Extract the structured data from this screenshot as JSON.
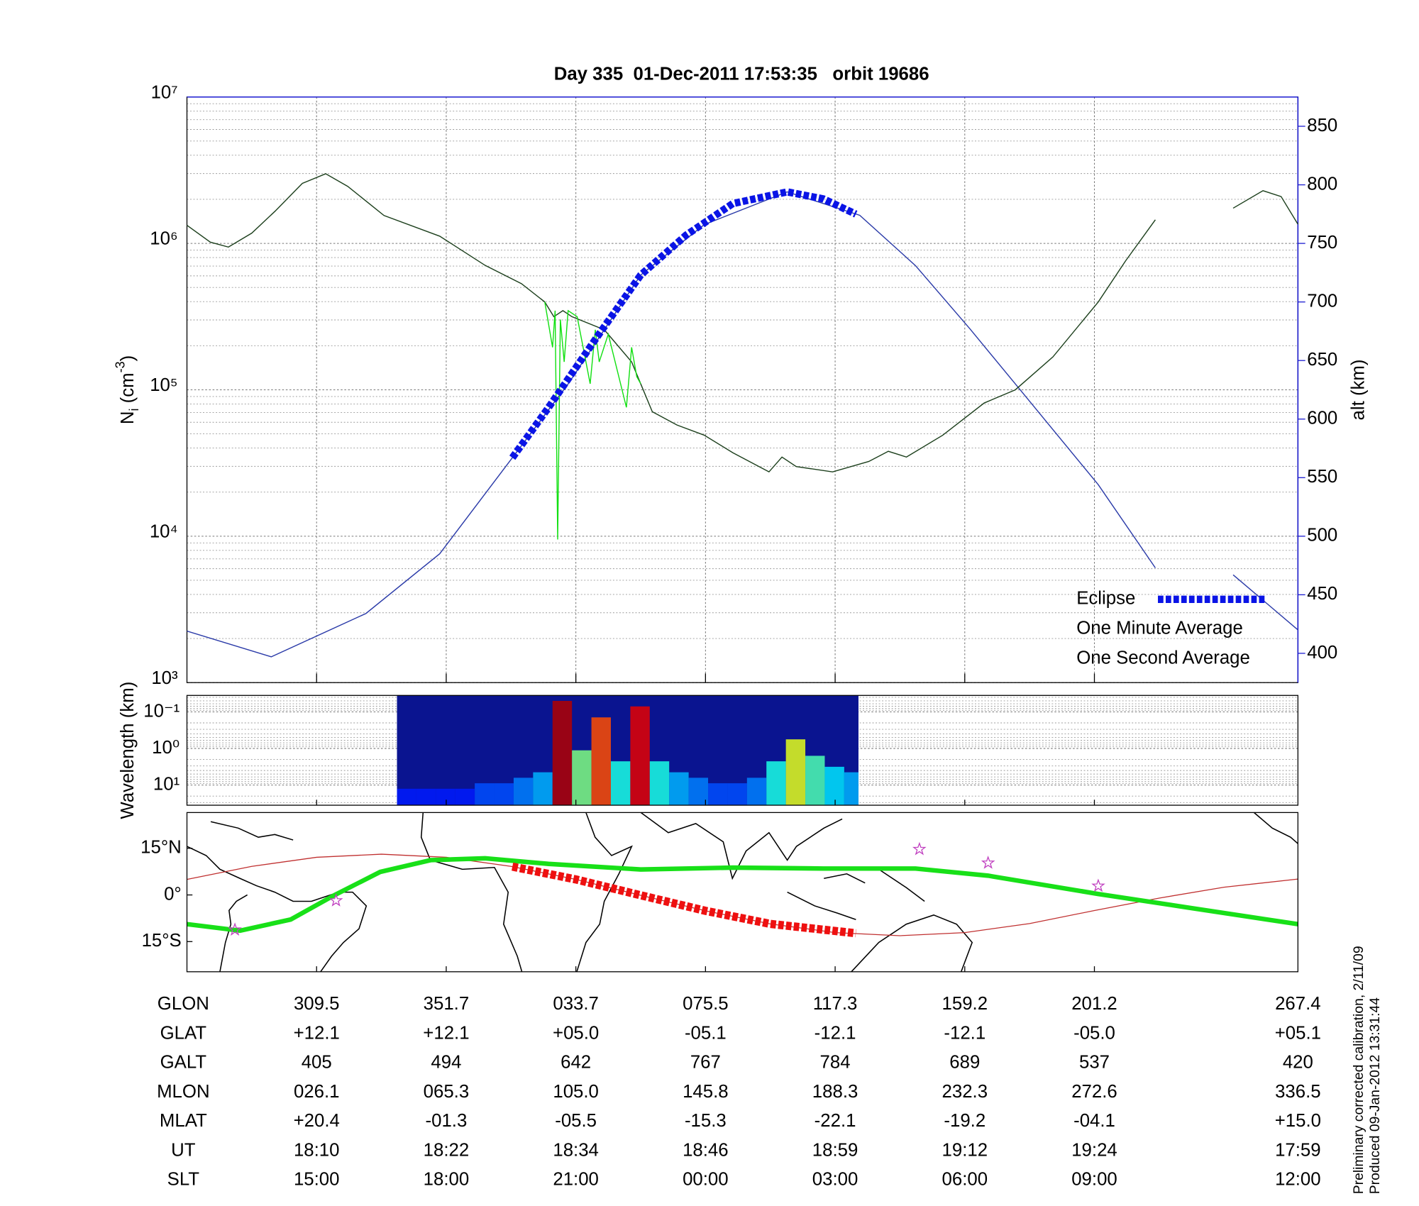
{
  "chart_data": [
    {
      "type": "line",
      "title": "Day 335  01-Dec-2011 17:53:35   orbit 19686",
      "ylabel_parts": [
        "N",
        "i",
        " (cm",
        "-3",
        ")"
      ],
      "y2label": "alt (km)",
      "xlim": [
        0,
        8.57
      ],
      "xticks": [
        1,
        2,
        3,
        4,
        5,
        6,
        7
      ],
      "ylim": [
        1000,
        10000000
      ],
      "yscale": "log",
      "yticks": [
        {
          "value": 1000,
          "label": "10³"
        },
        {
          "value": 10000,
          "label": "10⁴"
        },
        {
          "value": 100000,
          "label": "10⁵"
        },
        {
          "value": 1000000,
          "label": "10⁶"
        },
        {
          "value": 10000000,
          "label": "10⁷"
        }
      ],
      "y2lim": [
        375,
        875
      ],
      "y2ticks": [
        400,
        450,
        500,
        550,
        600,
        650,
        700,
        750,
        800,
        850
      ],
      "y2color": "#1a1ad0",
      "grid": true,
      "legend": "lower right",
      "series": [
        {
          "name": "Eclipse",
          "color": "#0a14e6",
          "axis": "y2",
          "style": "dashed-thick",
          "x": [
            2.51,
            2.79,
            3.15,
            3.5,
            3.85,
            4.21,
            4.63,
            4.91,
            5.16
          ],
          "values": [
            567,
            610,
            668,
            723,
            757,
            784,
            794,
            788,
            775
          ]
        },
        {
          "name": "One Minute Average",
          "color": "#1c3f1c",
          "x": [
            0,
            0.18,
            0.32,
            0.5,
            0.68,
            0.89,
            1.07,
            1.24,
            1.52,
            1.95,
            2.3,
            2.58,
            2.76,
            2.83,
            2.9,
            2.97,
            3.22,
            3.43,
            3.5,
            3.59,
            3.78,
            3.99,
            4.21,
            4.49,
            4.59,
            4.7,
            4.98,
            5.26,
            5.41,
            5.55,
            5.83,
            6.15,
            6.39,
            6.68,
            7.03,
            7.24,
            7.47,
            7.8,
            8.07,
            8.3,
            8.44,
            8.57
          ],
          "values": [
            1330000,
            1020000,
            944000,
            1175000,
            1660000,
            2570000,
            2990000,
            2450000,
            1550000,
            1120000,
            708000,
            531000,
            398000,
            316000,
            347000,
            316000,
            257000,
            155000,
            110000,
            70800,
            57500,
            49000,
            37200,
            27500,
            34700,
            29900,
            27500,
            32400,
            38000,
            34700,
            49000,
            81300,
            100000,
            168000,
            398000,
            759000,
            1450000,
            null,
            1740000,
            2290000,
            2090000,
            1350000
          ]
        },
        {
          "name": "One Second Average",
          "color": "#12e012",
          "x": [
            2.76,
            2.82,
            2.84,
            2.86,
            2.88,
            2.91,
            2.94,
            3.01,
            3.11,
            3.15,
            3.18,
            3.25,
            3.39,
            3.43,
            3.47,
            3.5
          ],
          "values": [
            398000,
            195000,
            347000,
            9500,
            302000,
            155000,
            347000,
            316000,
            110000,
            257000,
            155000,
            240000,
            75900,
            195000,
            123000,
            110000
          ]
        },
        {
          "color": "#2a3aa8",
          "axis": "y2",
          "x": [
            0,
            0.65,
            1.38,
            1.95,
            2.51,
            2.94,
            3.5,
            3.99,
            4.63,
            5.19,
            5.62,
            6.04,
            6.39,
            7.03,
            7.47,
            7.8,
            8.07,
            8.57
          ],
          "values": [
            419,
            397,
            434,
            485,
            567,
            630,
            723,
            766,
            794,
            774,
            731,
            677,
            630,
            544,
            473,
            null,
            467,
            420
          ]
        }
      ]
    },
    {
      "type": "heatmap",
      "ylabel": "Wavelength (km)",
      "xlim": [
        0,
        8.57
      ],
      "ylim": [
        35.5,
        0.0355
      ],
      "yscale": "log",
      "yticks": [
        {
          "value": 0.1,
          "label": "10⁻¹"
        },
        {
          "value": 1,
          "label": "10⁰"
        },
        {
          "value": 10,
          "label": "10¹"
        }
      ],
      "x_edges": [
        1.62,
        1.77,
        1.92,
        2.07,
        2.22,
        2.37,
        2.52,
        2.67,
        2.82,
        2.97,
        3.12,
        3.27,
        3.42,
        3.57,
        3.72,
        3.87,
        4.02,
        4.17,
        4.32,
        4.47,
        4.62,
        4.77,
        4.92,
        5.07,
        5.18
      ],
      "values": [
        0.15,
        0.15,
        0.15,
        0.15,
        0.2,
        0.2,
        0.25,
        0.3,
        0.95,
        0.5,
        0.8,
        0.4,
        0.9,
        0.4,
        0.3,
        0.25,
        0.2,
        0.2,
        0.25,
        0.4,
        0.6,
        0.45,
        0.35,
        0.3
      ],
      "zlim": [
        0,
        1
      ]
    },
    {
      "type": "map",
      "xlim": [
        0,
        8.57
      ],
      "ylim": [
        -24.7,
        26.5
      ],
      "yticks": [
        {
          "value": 15,
          "label": "15°N"
        },
        {
          "value": 0,
          "label": "0°"
        },
        {
          "value": -15,
          "label": "15°S"
        }
      ],
      "series": [
        {
          "color": "#c03030",
          "width": 1,
          "x": [
            0,
            0.5,
            1,
            1.5,
            2,
            2.5,
            3,
            3.5,
            4,
            4.5,
            5,
            5.5,
            6,
            6.5,
            7,
            7.5,
            8,
            8.57
          ],
          "values": [
            5.0,
            9.2,
            12.1,
            13.1,
            12.1,
            9.2,
            5.0,
            -0.1,
            -5.1,
            -9.3,
            -12.1,
            -13.1,
            -12.1,
            -9.2,
            -5.0,
            -1.0,
            2.5,
            5.1
          ]
        },
        {
          "color": "#18e018",
          "width": 5,
          "x": [
            0,
            0.41,
            0.8,
            1.14,
            1.49,
            1.88,
            2.3,
            2.79,
            3.5,
            4.21,
            4.91,
            5.62,
            6.18,
            7.03,
            7.73,
            8.57
          ],
          "values": [
            -9.4,
            -11.5,
            -7.9,
            0,
            7.4,
            11.2,
            11.8,
            10.0,
            8.2,
            8.8,
            8.5,
            8.5,
            6.2,
            0.3,
            -4.1,
            -9.4
          ]
        },
        {
          "color": "#ee1010",
          "width": 9,
          "style": "dashed-thick",
          "x": [
            2.51,
            3,
            3.5,
            4,
            4.5,
            5.16
          ],
          "values": [
            9.1,
            5.0,
            -0.1,
            -5.1,
            -9.3,
            -12.3
          ]
        }
      ],
      "stars": {
        "color": "#c040c0",
        "x": [
          0.37,
          1.15,
          5.65,
          6.18,
          7.03
        ],
        "values": [
          -11.2,
          -1.8,
          14.7,
          10.3,
          2.9
        ]
      }
    }
  ],
  "table": {
    "rows": [
      [
        "GLON",
        "309.5",
        "351.7",
        "033.7",
        "075.5",
        "117.3",
        "159.2",
        "201.2",
        "267.4"
      ],
      [
        "GLAT",
        "+12.1",
        "+12.1",
        "+05.0",
        "-05.1",
        "-12.1",
        "-12.1",
        "-05.0",
        "+05.1"
      ],
      [
        "GALT",
        "405",
        "494",
        "642",
        "767",
        "784",
        "689",
        "537",
        "420"
      ],
      [
        "MLON",
        "026.1",
        "065.3",
        "105.0",
        "145.8",
        "188.3",
        "232.3",
        "272.6",
        "336.5"
      ],
      [
        "MLAT",
        "+20.4",
        "-01.3",
        "-05.5",
        "-15.3",
        "-22.1",
        "-19.2",
        "-04.1",
        "+15.0"
      ],
      [
        "UT",
        "18:10",
        "18:22",
        "18:34",
        "18:46",
        "18:59",
        "19:12",
        "19:24",
        "17:59"
      ],
      [
        "SLT",
        "15:00",
        "18:00",
        "21:00",
        "00:00",
        "03:00",
        "06:00",
        "09:00",
        "12:00"
      ]
    ]
  },
  "notes": [
    "Preliminary corrected calibration, 2/11/09",
    "Produced 09-Jan-2012 13:31:44"
  ]
}
